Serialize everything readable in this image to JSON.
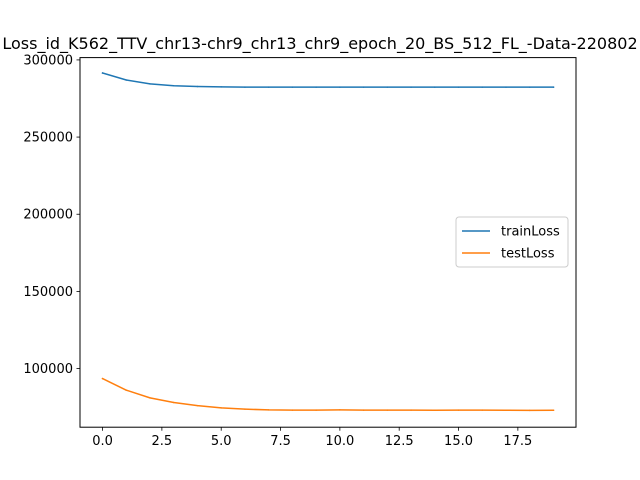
{
  "chart_data": {
    "type": "line",
    "title": "Loss_id_K562_TTV_chr13-chr9_chr13_chr9_epoch_20_BS_512_FL_-Data-220802",
    "xlabel": "",
    "ylabel": "",
    "xlim": [
      -0.95,
      19.95
    ],
    "ylim": [
      62000,
      301500
    ],
    "x": [
      0,
      1,
      2,
      3,
      4,
      5,
      6,
      7,
      8,
      9,
      10,
      11,
      12,
      13,
      14,
      15,
      16,
      17,
      18,
      19
    ],
    "xticks": [
      0.0,
      2.5,
      5.0,
      7.5,
      10.0,
      12.5,
      15.0,
      17.5
    ],
    "xtick_labels": [
      "0.0",
      "2.5",
      "5.0",
      "7.5",
      "10.0",
      "12.5",
      "15.0",
      "17.5"
    ],
    "yticks": [
      100000,
      150000,
      200000,
      250000,
      300000
    ],
    "ytick_labels": [
      "100000",
      "150000",
      "200000",
      "250000",
      "300000"
    ],
    "grid": false,
    "legend_position": "center-right",
    "series": [
      {
        "name": "trainLoss",
        "color": "#1f77b4",
        "values": [
          291500,
          287000,
          284500,
          283300,
          282800,
          282500,
          282400,
          282350,
          282350,
          282350,
          282350,
          282350,
          282350,
          282350,
          282350,
          282350,
          282350,
          282350,
          282350,
          282350
        ]
      },
      {
        "name": "testLoss",
        "color": "#ff7f0e",
        "values": [
          93500,
          86000,
          81000,
          78000,
          76000,
          74500,
          73700,
          73200,
          73100,
          73100,
          73200,
          73100,
          73100,
          73100,
          73000,
          73100,
          73100,
          73000,
          72900,
          73000
        ]
      }
    ]
  }
}
